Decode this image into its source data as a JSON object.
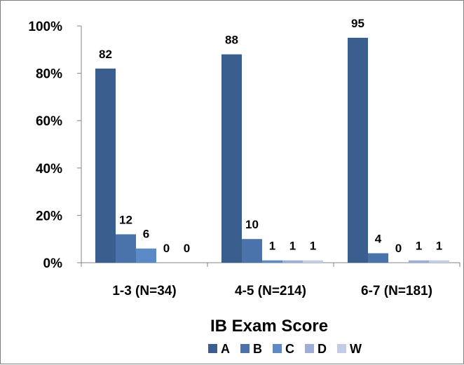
{
  "chart_data": {
    "type": "bar",
    "title": "",
    "xlabel": "IB Exam Score",
    "ylabel": "",
    "categories": [
      "1-3  (N=34)",
      "4-5  (N=214)",
      "6-7  (N=181)"
    ],
    "series": [
      {
        "name": "A",
        "values": [
          82,
          88,
          95
        ],
        "color": "#3a5f8f"
      },
      {
        "name": "B",
        "values": [
          12,
          10,
          4
        ],
        "color": "#4a73ab"
      },
      {
        "name": "C",
        "values": [
          6,
          1,
          0
        ],
        "color": "#5b8ac7"
      },
      {
        "name": "D",
        "values": [
          0,
          1,
          1
        ],
        "color": "#9daed6"
      },
      {
        "name": "W",
        "values": [
          0,
          1,
          1
        ],
        "color": "#c3cce6"
      }
    ],
    "ylim": [
      0,
      100
    ],
    "yticks": [
      0,
      20,
      40,
      60,
      80,
      100
    ],
    "ytick_labels": [
      "0%",
      "20%",
      "40%",
      "60%",
      "80%",
      "100%"
    ],
    "grid": false,
    "legend_position": "bottom"
  }
}
